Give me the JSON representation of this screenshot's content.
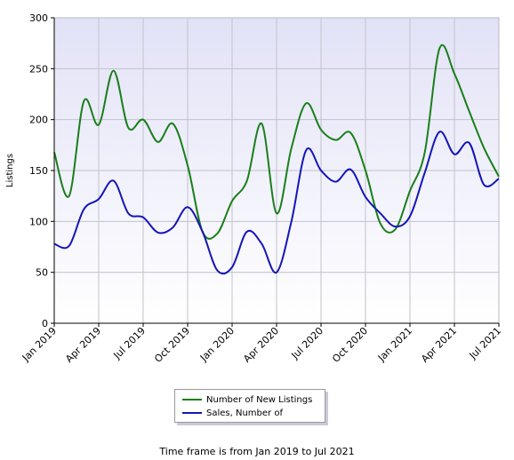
{
  "chart_data": {
    "type": "line",
    "ylabel": "Listings",
    "ylim": [
      0,
      300
    ],
    "yticks": [
      0,
      50,
      100,
      150,
      200,
      250,
      300
    ],
    "xticks": [
      "Jan 2019",
      "Apr 2019",
      "Jul 2019",
      "Oct 2019",
      "Jan 2020",
      "Apr 2020",
      "Jul 2020",
      "Oct 2020",
      "Jan 2021",
      "Apr 2021",
      "Jul 2021"
    ],
    "x": [
      "Jan 2019",
      "Feb 2019",
      "Mar 2019",
      "Apr 2019",
      "May 2019",
      "Jun 2019",
      "Jul 2019",
      "Aug 2019",
      "Sep 2019",
      "Oct 2019",
      "Nov 2019",
      "Dec 2019",
      "Jan 2020",
      "Feb 2020",
      "Mar 2020",
      "Apr 2020",
      "May 2020",
      "Jun 2020",
      "Jul 2020",
      "Aug 2020",
      "Sep 2020",
      "Oct 2020",
      "Nov 2020",
      "Dec 2020",
      "Jan 2021",
      "Feb 2021",
      "Mar 2021",
      "Apr 2021",
      "May 2021",
      "Jun 2021",
      "Jul 2021"
    ],
    "grid": true,
    "legend_position": "bottom",
    "series": [
      {
        "name": "Number of New Listings",
        "color": "#1a7f1a",
        "values": [
          168,
          125,
          218,
          195,
          248,
          192,
          200,
          178,
          196,
          155,
          90,
          88,
          120,
          140,
          196,
          108,
          172,
          216,
          190,
          180,
          187,
          150,
          98,
          92,
          130,
          168,
          270,
          245,
          208,
          172,
          144
        ]
      },
      {
        "name": "Sales, Number of",
        "color": "#1515b8",
        "values": [
          78,
          76,
          112,
          122,
          140,
          108,
          104,
          89,
          94,
          114,
          90,
          52,
          55,
          90,
          78,
          50,
          100,
          170,
          150,
          139,
          151,
          124,
          108,
          95,
          105,
          148,
          188,
          166,
          177,
          136,
          142
        ]
      }
    ]
  },
  "footer": "Time frame is from Jan 2019 to Jul 2021"
}
